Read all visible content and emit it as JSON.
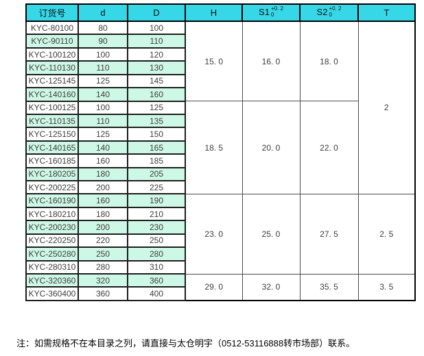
{
  "colors": {
    "header_bg": "#36d7e6",
    "stripe_bg": "#cdf7e6",
    "border_heavy": "#000000",
    "border_light": "#4a4a4a",
    "text": "#3d3d3d"
  },
  "table": {
    "headers": {
      "order": "订货号",
      "d": "d",
      "D": "D",
      "H": "H",
      "s1_base": "S1",
      "s1_sup": "+0. 2",
      "s1_sub": "0",
      "s2_base": "S2",
      "s2_sup": "+0. 2",
      "s2_sub": "0",
      "T": "T"
    },
    "groups": [
      {
        "H": "15. 0",
        "S1": "16. 0",
        "S2": "18. 0",
        "rows": [
          {
            "order": "KYC-80100",
            "d": "80",
            "D": "100"
          },
          {
            "order": "KYC-90110",
            "d": "90",
            "D": "110"
          },
          {
            "order": "KYC-100120",
            "d": "100",
            "D": "120"
          },
          {
            "order": "KYC-110130",
            "d": "110",
            "D": "130"
          },
          {
            "order": "KYC-125145",
            "d": "125",
            "D": "145"
          },
          {
            "order": "KYC-140160",
            "d": "140",
            "D": "160"
          }
        ]
      },
      {
        "H": "18. 5",
        "S1": "20. 0",
        "S2": "22. 0",
        "rows": [
          {
            "order": "KYC-100125",
            "d": "100",
            "D": "125"
          },
          {
            "order": "KYC-110135",
            "d": "110",
            "D": "135"
          },
          {
            "order": "KYC-125150",
            "d": "125",
            "D": "150"
          },
          {
            "order": "KYC-140165",
            "d": "140",
            "D": "165"
          },
          {
            "order": "KYC-160185",
            "d": "160",
            "D": "185"
          },
          {
            "order": "KYC-180205",
            "d": "180",
            "D": "205"
          },
          {
            "order": "KYC-200225",
            "d": "200",
            "D": "225"
          }
        ]
      },
      {
        "H": "23. 0",
        "S1": "25. 0",
        "S2": "27. 5",
        "rows": [
          {
            "order": "KYC-160190",
            "d": "160",
            "D": "190"
          },
          {
            "order": "KYC-180210",
            "d": "180",
            "D": "210"
          },
          {
            "order": "KYC-200230",
            "d": "200",
            "D": "230"
          },
          {
            "order": "KYC-220250",
            "d": "220",
            "D": "250"
          },
          {
            "order": "KYC-250280",
            "d": "250",
            "D": "280"
          },
          {
            "order": "KYC-280310",
            "d": "280",
            "D": "310"
          }
        ]
      },
      {
        "H": "29. 0",
        "S1": "32. 0",
        "S2": "35. 5",
        "rows": [
          {
            "order": "KYC-320360",
            "d": "320",
            "D": "360"
          },
          {
            "order": "KYC-360400",
            "d": "360",
            "D": "400"
          }
        ]
      }
    ],
    "t_values": [
      {
        "value": "2",
        "group_span": [
          0,
          1
        ]
      },
      {
        "value": "2. 5",
        "group_span": [
          2,
          2
        ]
      },
      {
        "value": "3. 5",
        "group_span": [
          3,
          3
        ]
      }
    ]
  },
  "note": "注：如需规格不在本目录之列，请直接与太仓明宇（0512-53116888转市场部）联系。"
}
